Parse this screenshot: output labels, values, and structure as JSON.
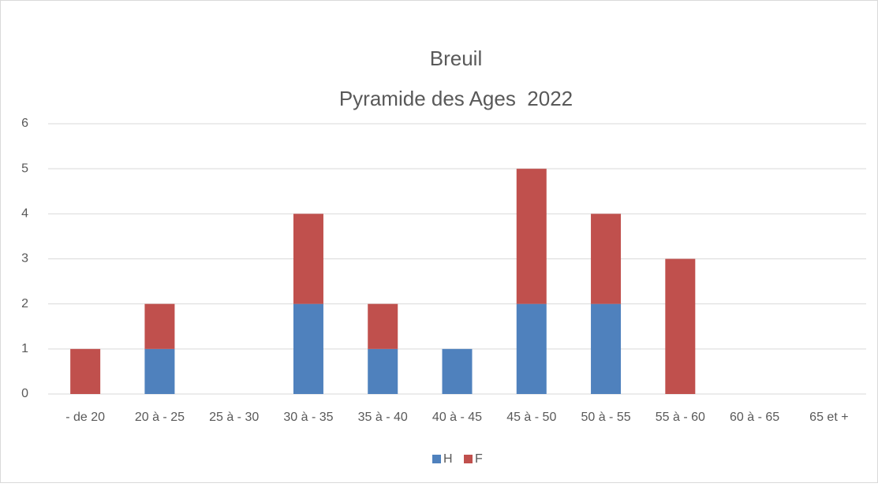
{
  "chart_data": {
    "type": "stacked_bar",
    "title": "Breuil",
    "subtitle": "Pyramide des Ages  2022",
    "categories": [
      "- de 20",
      "20 à - 25",
      "25 à - 30",
      "30 à - 35",
      "35 à - 40",
      "40 à - 45",
      "45 à - 50",
      "50 à - 55",
      "55 à - 60",
      "60 à - 65",
      "65 et +"
    ],
    "series": [
      {
        "name": "H",
        "color": "#4f81bd",
        "values": [
          0,
          1,
          0,
          2,
          1,
          1,
          2,
          2,
          0,
          0,
          0
        ]
      },
      {
        "name": "F",
        "color": "#c0504d",
        "values": [
          1,
          1,
          0,
          2,
          1,
          0,
          3,
          2,
          3,
          0,
          0
        ]
      }
    ],
    "ylim": [
      0,
      6
    ],
    "yticks": [
      0,
      1,
      2,
      3,
      4,
      5,
      6
    ],
    "grid": true,
    "legend": "bottom"
  }
}
